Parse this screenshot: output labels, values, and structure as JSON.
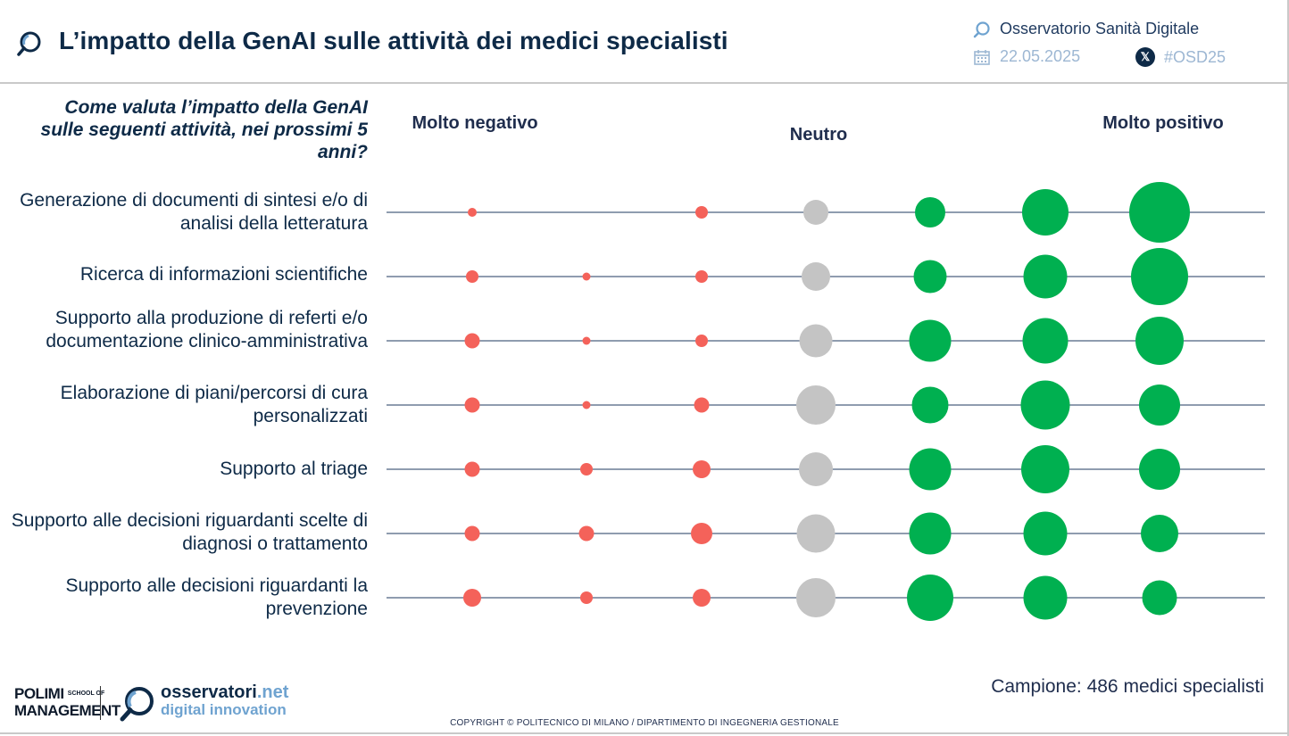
{
  "header": {
    "title": "L’impatto della GenAI sulle attività dei medici specialisti",
    "observatory": "Osservatorio Sanità Digitale",
    "date": "22.05.2025",
    "hashtag": "#OSD25"
  },
  "question": "Come valuta l’impatto della GenAI sulle seguenti attività, nei prossimi 5 anni?",
  "scale_labels": {
    "negative": "Molto negativo",
    "neutral": "Neutro",
    "positive": "Molto positivo"
  },
  "footer": {
    "sample": "Campione: 486 medici specialisti",
    "copyright": "COPYRIGHT © POLITECNICO DI MILANO / DIPARTIMENTO DI INGEGNERIA GESTIONALE",
    "polimi_line1": "POLIMI",
    "polimi_line2": "MANAGEMENT",
    "polimi_small": "SCHOOL OF",
    "osservatori_name": "osservatori",
    "osservatori_tld": ".net",
    "osservatori_tagline": "digital innovation"
  },
  "colors": {
    "negative": "#f4625a",
    "neutral": "#c4c4c4",
    "positive": "#00b050",
    "title": "#0e2a47",
    "line": "#1f3a5f"
  },
  "chart_data": {
    "type": "bubble",
    "scale_points": 7,
    "values_note_unit": "relative bubble size (diameter, arbitrary units)",
    "rows": [
      {
        "label": "Generazione di documenti di sintesi e/o di analisi della letteratura",
        "values": [
          10,
          0,
          14,
          28,
          34,
          52,
          68
        ]
      },
      {
        "label": "Ricerca di informazioni scientifiche",
        "values": [
          14,
          9,
          14,
          32,
          37,
          49,
          64
        ]
      },
      {
        "label": "Supporto alla produzione di referti e/o documentazione clinico-amministrativa",
        "values": [
          17,
          9,
          14,
          37,
          47,
          51,
          54
        ]
      },
      {
        "label": "Elaborazione di piani/percorsi di cura personalizzati",
        "values": [
          17,
          9,
          17,
          44,
          41,
          55,
          46
        ]
      },
      {
        "label": "Supporto al triage",
        "values": [
          17,
          14,
          20,
          38,
          47,
          54,
          46
        ]
      },
      {
        "label": "Supporto alle decisioni riguardanti scelte di diagnosi o trattamento",
        "values": [
          17,
          17,
          24,
          43,
          47,
          49,
          42
        ]
      },
      {
        "label": "Supporto alle decisioni riguardanti la prevenzione",
        "values": [
          20,
          14,
          20,
          44,
          52,
          49,
          39
        ]
      }
    ]
  }
}
